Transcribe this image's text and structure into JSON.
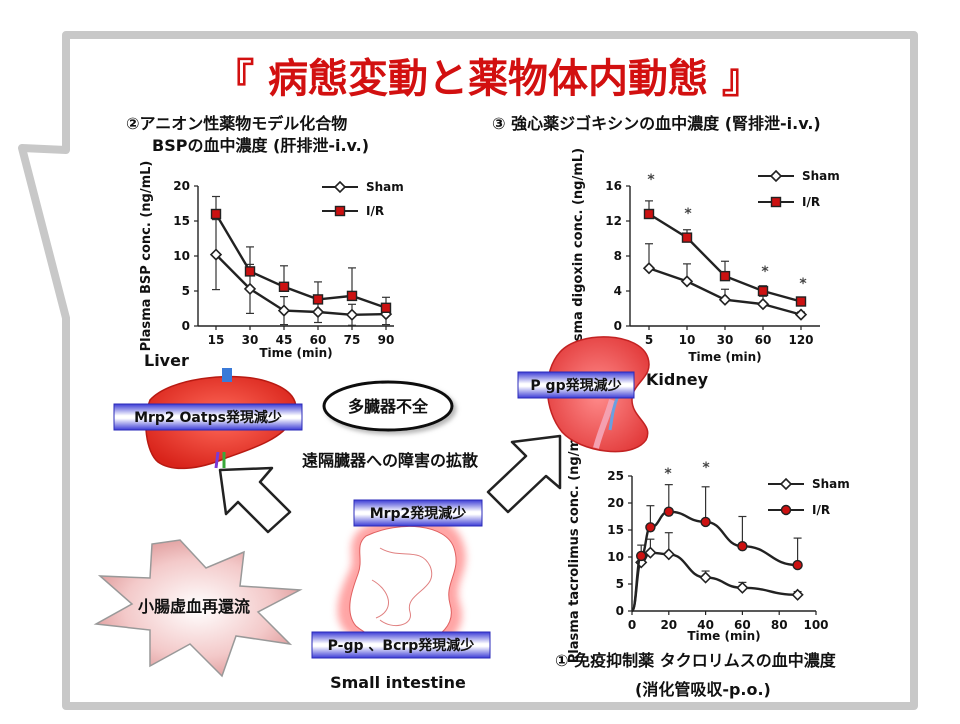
{
  "title": "『 病態変動と薬物体内動態 』",
  "colors": {
    "title": "#d21010",
    "frame": "#c8c8c8",
    "band_blue": "#3d3dd8",
    "sham_line": "#222222",
    "ir_marker": "#cc1111"
  },
  "panel2": {
    "heading_line1": "②アニオン性薬物モデル化合物",
    "heading_line2": "BSPの血中濃度 (肝排泄-i.v.)"
  },
  "panel3": {
    "heading": "③ 強心薬ジゴキシンの血中濃度 (腎排泄-i.v.)"
  },
  "panel1": {
    "heading_line1": "① 免疫抑制薬 タクロリムスの血中濃度",
    "heading_line2": "(消化管吸収-p.o.)"
  },
  "organs": {
    "liver_label": "Liver",
    "kidney_label": "Kidney",
    "intestine_label": "Small intestine"
  },
  "bands": {
    "liver": "Mrp2 Oatps発現減少",
    "kidney": "P gp発現減少",
    "intestine_top": "Mrp2発現減少",
    "intestine_bottom": "P-gp 、Bcrp発現減少"
  },
  "labels": {
    "multi_organ": "多臓器不全",
    "spread": "遠隔臓器への障害の拡散",
    "ischemia": "小腸虚血再還流"
  },
  "chart_data": [
    {
      "id": "bsp",
      "type": "line",
      "ylabel": "Plasma BSP conc. (ng/mL)",
      "xlabel": "Time (min)",
      "categories": [
        "15",
        "30",
        "45",
        "60",
        "75",
        "90"
      ],
      "ylim": [
        0,
        20
      ],
      "yticks": [
        0,
        5,
        10,
        15,
        20
      ],
      "legend": "top-right",
      "series": [
        {
          "name": "Sham",
          "marker": "diamond",
          "values": [
            10.2,
            5.3,
            2.2,
            2.0,
            1.6,
            1.7
          ],
          "err": [
            5.0,
            3.5,
            2.0,
            1.5,
            1.5,
            1.5
          ]
        },
        {
          "name": "I/R",
          "marker": "square",
          "values": [
            16.0,
            7.8,
            5.6,
            3.8,
            4.3,
            2.6
          ],
          "err": [
            2.5,
            3.5,
            3.0,
            2.5,
            4.0,
            1.5
          ]
        }
      ]
    },
    {
      "id": "digoxin",
      "type": "line",
      "ylabel": "Plasma digoxin conc. (ng/mL)",
      "xlabel": "Time (min)",
      "categories": [
        "5",
        "10",
        "30",
        "60",
        "120"
      ],
      "ylim": [
        0,
        16
      ],
      "yticks": [
        0,
        4,
        8,
        12,
        16
      ],
      "legend": "top-right",
      "annotations": [
        "*",
        "*",
        "*",
        "*"
      ],
      "series": [
        {
          "name": "Sham",
          "marker": "diamond",
          "values": [
            6.6,
            5.1,
            3.0,
            2.5,
            1.3
          ],
          "err": [
            2.8,
            2.0,
            1.2,
            0.9,
            0.3
          ]
        },
        {
          "name": "I/R",
          "marker": "square",
          "values": [
            12.8,
            10.1,
            5.7,
            4.0,
            2.8
          ],
          "err": [
            1.5,
            0.9,
            1.7,
            0.6,
            0.4
          ]
        }
      ]
    },
    {
      "id": "tacrolimus",
      "type": "line",
      "ylabel": "Plasma tacrolimus conc. (ng/mL)",
      "xlabel": "Time (min)",
      "xticks": [
        0,
        20,
        40,
        60,
        80,
        100
      ],
      "xlim": [
        0,
        100
      ],
      "ylim": [
        0,
        25
      ],
      "yticks": [
        0,
        5,
        10,
        15,
        20,
        25
      ],
      "legend": "top-right",
      "annotations": [
        "*",
        "*"
      ],
      "series": [
        {
          "name": "Sham",
          "marker": "diamond",
          "x": [
            5,
            10,
            20,
            40,
            60,
            90
          ],
          "values": [
            9.0,
            10.8,
            10.5,
            6.2,
            4.3,
            3.0
          ],
          "err": [
            1.5,
            2.5,
            4.0,
            1.2,
            1.0,
            0.6
          ]
        },
        {
          "name": "I/R",
          "marker": "circle",
          "x": [
            5,
            10,
            20,
            40,
            60,
            90
          ],
          "values": [
            10.2,
            15.5,
            18.4,
            16.5,
            12.0,
            8.5
          ],
          "err": [
            2.0,
            4.0,
            5.0,
            6.5,
            5.5,
            5.0
          ]
        }
      ]
    }
  ]
}
